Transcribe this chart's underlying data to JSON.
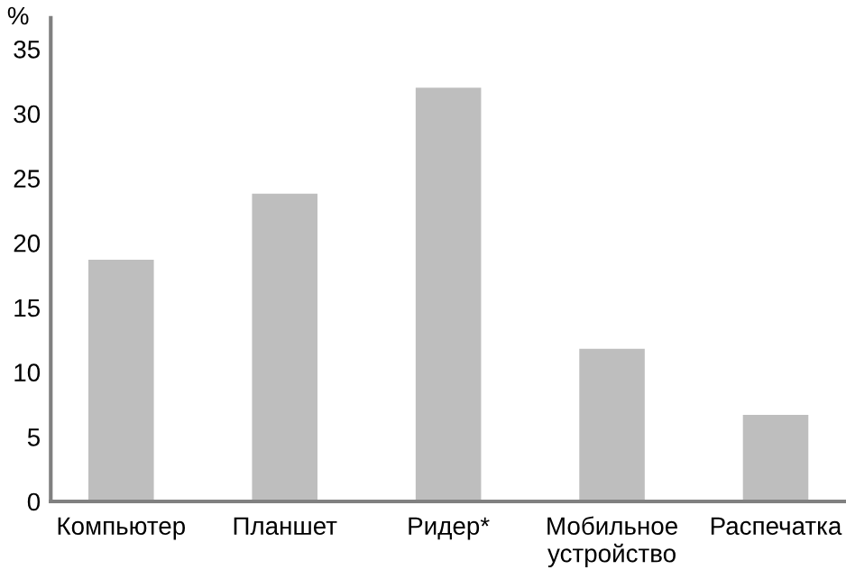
{
  "chart_data": {
    "type": "bar",
    "ylabel": "%",
    "categories": [
      "Компьютер",
      "Планшет",
      "Ридер*",
      "Мобильное\nустройство",
      "Распечатка"
    ],
    "values": [
      18.7,
      23.8,
      32.0,
      11.8,
      6.7
    ],
    "color": "#bebebe",
    "ylim": [
      0,
      37.4
    ],
    "yticks": [
      0,
      5,
      10,
      15,
      20,
      25,
      30,
      35
    ],
    "grid": false,
    "legend": false
  }
}
